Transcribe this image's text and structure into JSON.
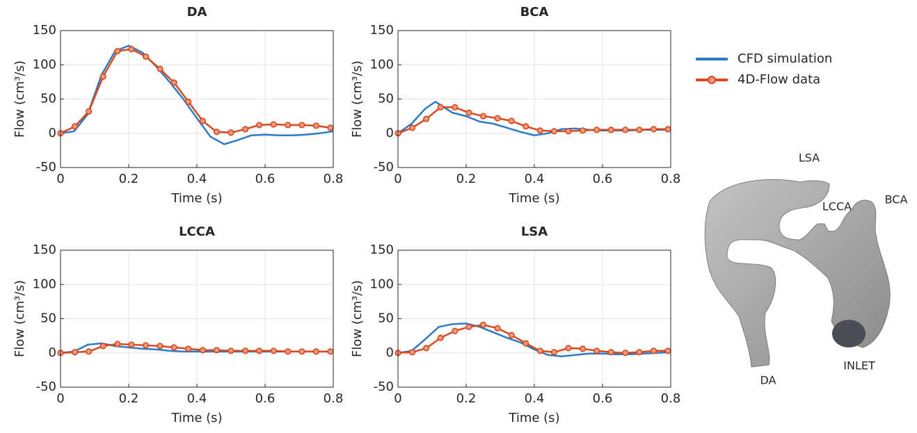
{
  "chart_data": [
    {
      "type": "line",
      "title": "DA",
      "xlabel": "Time (s)",
      "ylabel": "Flow (cm³/s)",
      "xlim": [
        0,
        0.8
      ],
      "ylim": [
        -50,
        150
      ],
      "xticks": [
        0,
        0.2,
        0.4,
        0.6,
        0.8
      ],
      "yticks": [
        -50,
        0,
        50,
        100,
        150
      ],
      "grid": true,
      "series": [
        {
          "color": "#2b7bc4",
          "marker": false,
          "x": [
            0,
            0.04,
            0.08,
            0.12,
            0.16,
            0.2,
            0.24,
            0.28,
            0.32,
            0.36,
            0.4,
            0.44,
            0.48,
            0.52,
            0.56,
            0.6,
            0.64,
            0.68,
            0.72,
            0.76,
            0.8
          ],
          "values": [
            0,
            3,
            28,
            85,
            120,
            128,
            118,
            98,
            75,
            50,
            22,
            -5,
            -16,
            -10,
            -3,
            -2,
            -3,
            -3,
            -2,
            0,
            3
          ]
        },
        {
          "color": "#d9471c",
          "marker": true,
          "x": [
            0,
            0.042,
            0.083,
            0.125,
            0.167,
            0.208,
            0.25,
            0.292,
            0.333,
            0.375,
            0.417,
            0.458,
            0.5,
            0.542,
            0.583,
            0.625,
            0.667,
            0.708,
            0.75,
            0.792
          ],
          "values": [
            0,
            10,
            32,
            83,
            120,
            123,
            112,
            94,
            74,
            46,
            18,
            2,
            1,
            6,
            12,
            13,
            12,
            12,
            11,
            8
          ]
        }
      ]
    },
    {
      "type": "line",
      "title": "BCA",
      "xlabel": "Time (s)",
      "ylabel": "Flow (cm³/s)",
      "xlim": [
        0,
        0.8
      ],
      "ylim": [
        -50,
        150
      ],
      "xticks": [
        0,
        0.2,
        0.4,
        0.6,
        0.8
      ],
      "yticks": [
        -50,
        0,
        50,
        100,
        150
      ],
      "grid": true,
      "series": [
        {
          "color": "#2b7bc4",
          "marker": false,
          "x": [
            0,
            0.04,
            0.08,
            0.11,
            0.16,
            0.2,
            0.24,
            0.28,
            0.32,
            0.36,
            0.4,
            0.44,
            0.48,
            0.52,
            0.56,
            0.6,
            0.64,
            0.68,
            0.72,
            0.76,
            0.8
          ],
          "values": [
            0,
            14,
            36,
            46,
            30,
            25,
            17,
            14,
            8,
            2,
            -3,
            0,
            6,
            7,
            5,
            4,
            4,
            4,
            5,
            5,
            5
          ]
        },
        {
          "color": "#d9471c",
          "marker": true,
          "x": [
            0,
            0.042,
            0.083,
            0.125,
            0.167,
            0.208,
            0.25,
            0.292,
            0.333,
            0.375,
            0.417,
            0.458,
            0.5,
            0.542,
            0.583,
            0.625,
            0.667,
            0.708,
            0.75,
            0.792
          ],
          "values": [
            0,
            8,
            21,
            38,
            38,
            30,
            25,
            22,
            18,
            10,
            4,
            3,
            3,
            4,
            5,
            5,
            5,
            5,
            6,
            6
          ]
        }
      ]
    },
    {
      "type": "line",
      "title": "LCCA",
      "xlabel": "Time (s)",
      "ylabel": "Flow (cm³/s)",
      "xlim": [
        0,
        0.8
      ],
      "ylim": [
        -50,
        150
      ],
      "xticks": [
        0,
        0.2,
        0.4,
        0.6,
        0.8
      ],
      "yticks": [
        -50,
        0,
        50,
        100,
        150
      ],
      "grid": true,
      "series": [
        {
          "color": "#2b7bc4",
          "marker": false,
          "x": [
            0,
            0.04,
            0.08,
            0.12,
            0.16,
            0.2,
            0.24,
            0.28,
            0.32,
            0.36,
            0.4,
            0.44,
            0.48,
            0.52,
            0.56,
            0.6,
            0.64,
            0.68,
            0.72,
            0.76,
            0.8
          ],
          "values": [
            0,
            2,
            12,
            14,
            10,
            8,
            6,
            5,
            3,
            2,
            2,
            2,
            2,
            2,
            2,
            2,
            2,
            2,
            2,
            2,
            2
          ]
        },
        {
          "color": "#d9471c",
          "marker": true,
          "x": [
            0,
            0.042,
            0.083,
            0.125,
            0.167,
            0.208,
            0.25,
            0.292,
            0.333,
            0.375,
            0.417,
            0.458,
            0.5,
            0.542,
            0.583,
            0.625,
            0.667,
            0.708,
            0.75,
            0.792
          ],
          "values": [
            0,
            1,
            2,
            10,
            13,
            12,
            11,
            10,
            8,
            6,
            4,
            4,
            3,
            3,
            3,
            3,
            2,
            2,
            2,
            2
          ]
        }
      ]
    },
    {
      "type": "line",
      "title": "LSA",
      "xlabel": "Time (s)",
      "ylabel": "Flow (cm³/s)",
      "xlim": [
        0,
        0.8
      ],
      "ylim": [
        -50,
        150
      ],
      "xticks": [
        0,
        0.2,
        0.4,
        0.6,
        0.8
      ],
      "yticks": [
        -50,
        0,
        50,
        100,
        150
      ],
      "grid": true,
      "series": [
        {
          "color": "#2b7bc4",
          "marker": false,
          "x": [
            0,
            0.04,
            0.08,
            0.12,
            0.16,
            0.2,
            0.24,
            0.28,
            0.32,
            0.36,
            0.4,
            0.44,
            0.48,
            0.52,
            0.56,
            0.6,
            0.64,
            0.68,
            0.72,
            0.76,
            0.8
          ],
          "values": [
            0,
            3,
            20,
            38,
            42,
            43,
            38,
            30,
            22,
            15,
            5,
            -3,
            -5,
            -3,
            -1,
            -1,
            -2,
            -2,
            -1,
            0,
            1
          ]
        },
        {
          "color": "#d9471c",
          "marker": true,
          "x": [
            0,
            0.042,
            0.083,
            0.125,
            0.167,
            0.208,
            0.25,
            0.292,
            0.333,
            0.375,
            0.417,
            0.458,
            0.5,
            0.542,
            0.583,
            0.625,
            0.667,
            0.708,
            0.75,
            0.792
          ],
          "values": [
            0,
            1,
            7,
            22,
            32,
            38,
            41,
            36,
            26,
            14,
            3,
            1,
            7,
            6,
            3,
            1,
            0,
            1,
            3,
            3
          ]
        }
      ]
    }
  ],
  "legend": [
    {
      "name": "CFD simulation",
      "color": "#2b7bc4",
      "marker": false
    },
    {
      "name": "4D-Flow data",
      "color": "#d9471c",
      "marker": true
    }
  ],
  "illustration": {
    "labels": [
      "LSA",
      "LCCA",
      "BCA",
      "DA",
      "INLET"
    ]
  }
}
